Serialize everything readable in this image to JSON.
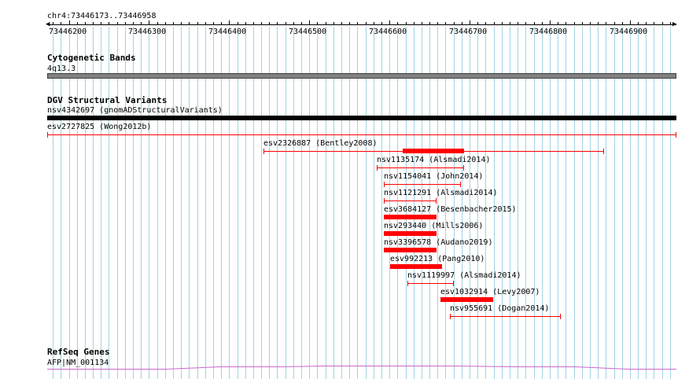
{
  "ruler": {
    "range_label": "chr4:73446173..73446958",
    "ticks": [
      "73446200",
      "73446300",
      "73446400",
      "73446500",
      "73446600",
      "73446700",
      "73446800",
      "73446900"
    ]
  },
  "tracks": {
    "cytoband": {
      "title": "Cytogenetic Bands",
      "band_label": "4q13.3"
    },
    "dgv": {
      "title": "DGV Structural Variants",
      "features": [
        {
          "label": "nsv4342697 (gnomADStructuralVariants)",
          "start": 73446173,
          "end": 73446958,
          "style": "thick-black"
        },
        {
          "label": "esv2727825 (Wong2012b)",
          "start": 73446173,
          "end": 73446958,
          "style": "thin"
        },
        {
          "label": "esv2326887 (Bentley2008)",
          "start": 73446443,
          "end": 73446868,
          "style": "thin",
          "thick_start": 73446617,
          "thick_end": 73446693
        },
        {
          "label": "nsv1135174 (Alsmadi2014)",
          "start": 73446584,
          "end": 73446693,
          "style": "thin"
        },
        {
          "label": "nsv1154041 (John2014)",
          "start": 73446593,
          "end": 73446689,
          "style": "thin"
        },
        {
          "label": "nsv1121291 (Alsmadi2014)",
          "start": 73446593,
          "end": 73446659,
          "style": "thin"
        },
        {
          "label": "esv3684127 (Besenbacher2015)",
          "start": 73446593,
          "end": 73446659,
          "style": "thick"
        },
        {
          "label": "nsv293440 (Mills2006)",
          "start": 73446593,
          "end": 73446659,
          "style": "thick"
        },
        {
          "label": "nsv3396578 (Audano2019)",
          "start": 73446593,
          "end": 73446659,
          "style": "thick"
        },
        {
          "label": "esv992213 (Pang2010)",
          "start": 73446601,
          "end": 73446666,
          "style": "thick"
        },
        {
          "label": "nsv1119997 (Alsmadi2014)",
          "start": 73446622,
          "end": 73446680,
          "style": "thin"
        },
        {
          "label": "esv1032914 (Levy2007)",
          "start": 73446664,
          "end": 73446729,
          "style": "thick"
        },
        {
          "label": "nsv955691 (Dogan2014)",
          "start": 73446675,
          "end": 73446814,
          "style": "thin"
        }
      ]
    },
    "refseq": {
      "title": "RefSeq Genes",
      "gene_label": "AFP|NM_001134"
    }
  },
  "colors": {
    "grid": "#a3d3e2",
    "variant": "#ff0000",
    "gene": "#cc66cc",
    "band_fill": "#808080"
  }
}
